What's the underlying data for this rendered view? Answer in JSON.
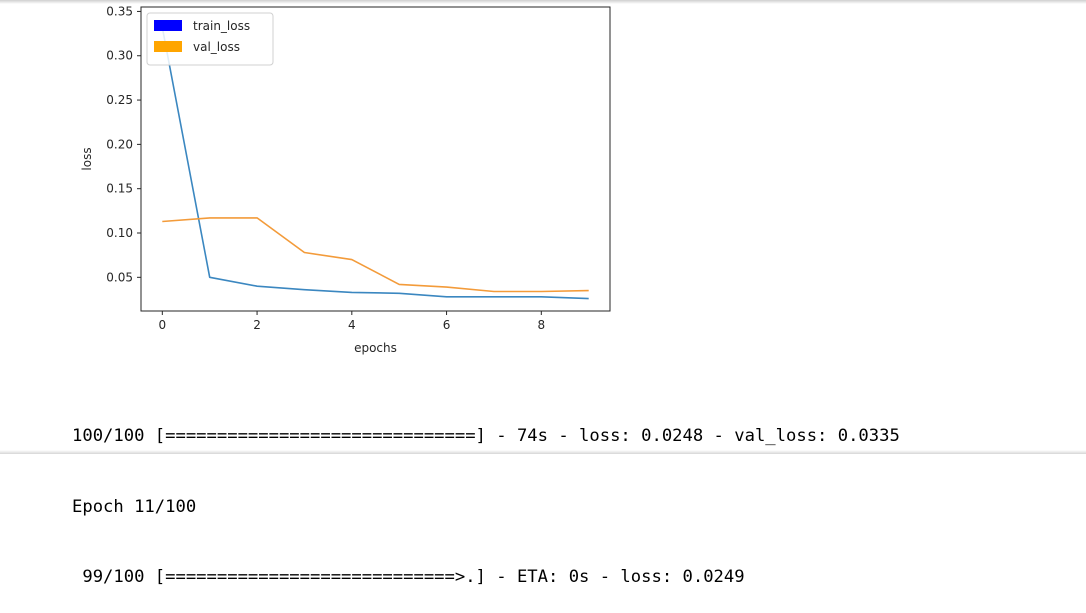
{
  "chart_data": {
    "type": "line",
    "title": "",
    "xlabel": "epochs",
    "ylabel": "loss",
    "xlim": [
      -0.45,
      9.45
    ],
    "ylim": [
      0.012,
      0.355
    ],
    "x_ticks": [
      0,
      2,
      4,
      6,
      8
    ],
    "y_ticks": [
      0.05,
      0.1,
      0.15,
      0.2,
      0.25,
      0.3,
      0.35
    ],
    "grid": false,
    "legend_position": "top-left",
    "x": [
      0,
      1,
      2,
      3,
      4,
      5,
      6,
      7,
      8,
      9
    ],
    "series": [
      {
        "name": "train_loss",
        "line_color": "#3b87c0",
        "legend_color": "#0000ff",
        "values": [
          0.332,
          0.05,
          0.04,
          0.036,
          0.033,
          0.032,
          0.028,
          0.028,
          0.028,
          0.026
        ]
      },
      {
        "name": "val_loss",
        "line_color": "#f39b3a",
        "legend_color": "#ffa500",
        "values": [
          0.113,
          0.117,
          0.117,
          0.078,
          0.07,
          0.042,
          0.039,
          0.034,
          0.034,
          0.035
        ]
      }
    ]
  },
  "console": {
    "lines": [
      "100/100 [==============================] - 74s - loss: 0.0248 - val_loss: 0.0335",
      "Epoch 11/100",
      " 99/100 [============================>.] - ETA: 0s - loss: 0.0249"
    ]
  }
}
